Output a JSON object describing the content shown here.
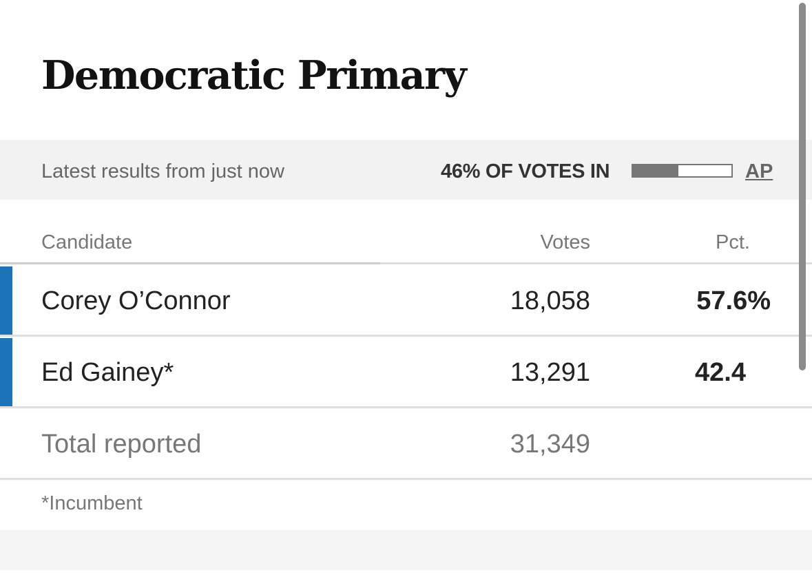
{
  "race": {
    "title": "Democratic Primary"
  },
  "status": {
    "updated": "Latest results from just now",
    "votes_in_label": "46% OF VOTES IN",
    "votes_in_fraction": 0.46,
    "source": "AP"
  },
  "table": {
    "headers": {
      "candidate": "Candidate",
      "votes": "Votes",
      "pct": "Pct."
    },
    "rows": [
      {
        "name": "Corey O’Connor",
        "votes": "18,058",
        "pct": "57.6%",
        "color": "#1d73b7"
      },
      {
        "name": "Ed Gainey*",
        "votes": "13,291",
        "pct": "42.4",
        "color": "#1d73b7"
      }
    ],
    "total": {
      "label": "Total reported",
      "votes": "31,349"
    }
  },
  "footnote": "*Incumbent"
}
